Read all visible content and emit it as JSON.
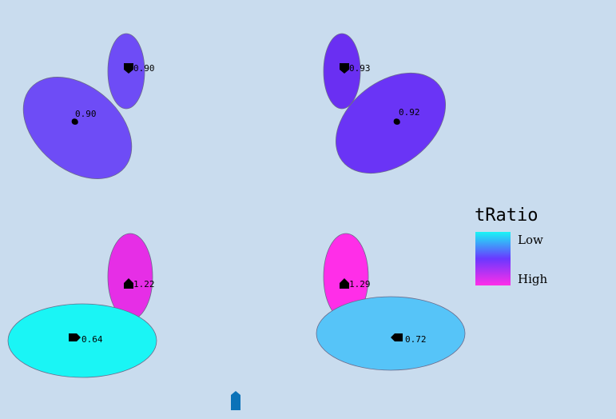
{
  "chart_data": {
    "type": "ellipse-glyph",
    "legend": {
      "title": "tRatio",
      "low_label": "Low",
      "high_label": "High",
      "low_color": "#1af5f5",
      "mid_color": "#6a38ff",
      "high_color": "#ff2ee8"
    },
    "glyphs": [
      {
        "id": "top-left-small",
        "value": "0.90",
        "color": "#6e4cf6",
        "marker": "shield"
      },
      {
        "id": "top-left-large",
        "value": "0.90",
        "color": "#6e4cf6",
        "marker": "blob"
      },
      {
        "id": "top-right-small",
        "value": "0.93",
        "color": "#6a2ff2",
        "marker": "shield"
      },
      {
        "id": "top-right-large",
        "value": "0.92",
        "color": "#6a34f6",
        "marker": "blob"
      },
      {
        "id": "bottom-left-tall",
        "value": "1.22",
        "color": "#e62ee6",
        "marker": "house"
      },
      {
        "id": "bottom-left-wide",
        "value": "0.64",
        "color": "#1af5f5",
        "marker": "tag-right"
      },
      {
        "id": "bottom-right-tall",
        "value": "1.29",
        "color": "#ff2ee8",
        "marker": "house"
      },
      {
        "id": "bottom-right-wide",
        "value": "0.72",
        "color": "#56c4f8",
        "marker": "tag-left"
      }
    ],
    "stray_marker_color": "#0a72b8"
  }
}
